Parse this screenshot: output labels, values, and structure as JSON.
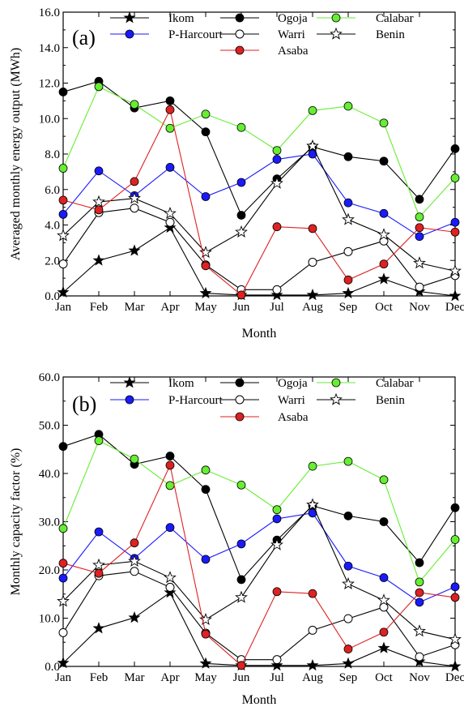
{
  "chart_data": [
    {
      "type": "line",
      "panel_label": "(a)",
      "xlabel": "Month",
      "ylabel": "Averaged monthly energy output (MWh)",
      "ylim": [
        0,
        16
      ],
      "yticks": [
        "0.0",
        "2.0",
        "4.0",
        "6.0",
        "8.0",
        "10.0",
        "12.0",
        "14.0",
        "16.0"
      ],
      "categories": [
        "Jan",
        "Feb",
        "Mar",
        "Apr",
        "May",
        "Jun",
        "Jul",
        "Aug",
        "Sep",
        "Oct",
        "Nov",
        "Dec"
      ],
      "legend_placement": "top",
      "series": [
        {
          "name": "Ikom",
          "marker": "star-filled",
          "color": "#000000",
          "values": [
            0.2,
            2.0,
            2.55,
            3.85,
            0.15,
            0.05,
            0.05,
            0.05,
            0.15,
            0.95,
            0.25,
            0.0
          ]
        },
        {
          "name": "Ogoja",
          "marker": "circle-filled",
          "color": "#000000",
          "values": [
            11.5,
            12.1,
            10.6,
            11.0,
            9.25,
            4.55,
            6.6,
            8.4,
            7.85,
            7.6,
            5.45,
            8.3
          ]
        },
        {
          "name": "Calabar",
          "marker": "circle-filled",
          "color": "#66ee33",
          "values": [
            7.2,
            11.8,
            10.8,
            9.45,
            10.25,
            9.5,
            8.2,
            10.45,
            10.7,
            9.75,
            4.45,
            6.65
          ]
        },
        {
          "name": "P-Harcourt",
          "marker": "circle-filled",
          "color": "#1a1aff",
          "values": [
            4.6,
            7.05,
            5.65,
            7.25,
            5.6,
            6.4,
            7.7,
            8.0,
            5.25,
            4.65,
            3.35,
            4.15
          ]
        },
        {
          "name": "Warri",
          "marker": "circle-open",
          "color": "#000000",
          "values": [
            1.8,
            4.7,
            4.95,
            4.15,
            1.75,
            0.35,
            0.35,
            1.9,
            2.5,
            3.1,
            0.5,
            1.15
          ]
        },
        {
          "name": "Benin",
          "marker": "star-open",
          "color": "#000000",
          "values": [
            3.4,
            5.3,
            5.5,
            4.65,
            2.45,
            3.6,
            6.35,
            8.45,
            4.3,
            3.45,
            1.85,
            1.4
          ]
        },
        {
          "name": "Asaba",
          "marker": "circle-filled",
          "color": "#dd2222",
          "values": [
            5.4,
            4.85,
            6.45,
            10.5,
            1.7,
            0.05,
            3.9,
            3.8,
            0.9,
            1.8,
            3.85,
            3.6
          ]
        }
      ]
    },
    {
      "type": "line",
      "panel_label": "(b)",
      "xlabel": "Month",
      "ylabel": "Monthly capacity factor (%)",
      "ylim": [
        0,
        60
      ],
      "yticks": [
        "0.0",
        "10.0",
        "20.0",
        "30.0",
        "40.0",
        "50.0",
        "60.0"
      ],
      "categories": [
        "Jan",
        "Feb",
        "Mar",
        "Apr",
        "May",
        "Jun",
        "Jul",
        "Aug",
        "Sep",
        "Oct",
        "Nov",
        "Dec"
      ],
      "legend_placement": "top",
      "series": [
        {
          "name": "Ikom",
          "marker": "star-filled",
          "color": "#000000",
          "values": [
            0.7,
            7.9,
            10.1,
            15.3,
            0.6,
            0.2,
            0.2,
            0.2,
            0.6,
            3.8,
            1.0,
            0.0
          ]
        },
        {
          "name": "Ogoja",
          "marker": "circle-filled",
          "color": "#000000",
          "values": [
            45.6,
            48.1,
            41.9,
            43.6,
            36.7,
            18.0,
            26.2,
            33.3,
            31.2,
            30.0,
            21.5,
            32.9
          ]
        },
        {
          "name": "Calabar",
          "marker": "circle-filled",
          "color": "#66ee33",
          "values": [
            28.6,
            46.8,
            43.0,
            37.5,
            40.7,
            37.6,
            32.5,
            41.5,
            42.5,
            38.7,
            17.5,
            26.3
          ]
        },
        {
          "name": "P-Harcourt",
          "marker": "circle-filled",
          "color": "#1a1aff",
          "values": [
            18.3,
            27.9,
            22.4,
            28.8,
            22.2,
            25.4,
            30.6,
            31.8,
            20.8,
            18.4,
            13.3,
            16.5
          ]
        },
        {
          "name": "Warri",
          "marker": "circle-open",
          "color": "#000000",
          "values": [
            7.0,
            18.8,
            19.7,
            16.4,
            6.9,
            1.4,
            1.4,
            7.5,
            9.9,
            12.3,
            2.0,
            4.5
          ]
        },
        {
          "name": "Benin",
          "marker": "star-open",
          "color": "#000000",
          "values": [
            13.5,
            21.0,
            21.8,
            18.4,
            9.7,
            14.3,
            25.2,
            33.5,
            17.1,
            13.7,
            7.3,
            5.6
          ]
        },
        {
          "name": "Asaba",
          "marker": "circle-filled",
          "color": "#dd2222",
          "values": [
            21.4,
            19.3,
            25.6,
            41.7,
            6.7,
            0.2,
            15.5,
            15.1,
            3.6,
            7.1,
            15.3,
            14.3
          ]
        }
      ]
    }
  ]
}
